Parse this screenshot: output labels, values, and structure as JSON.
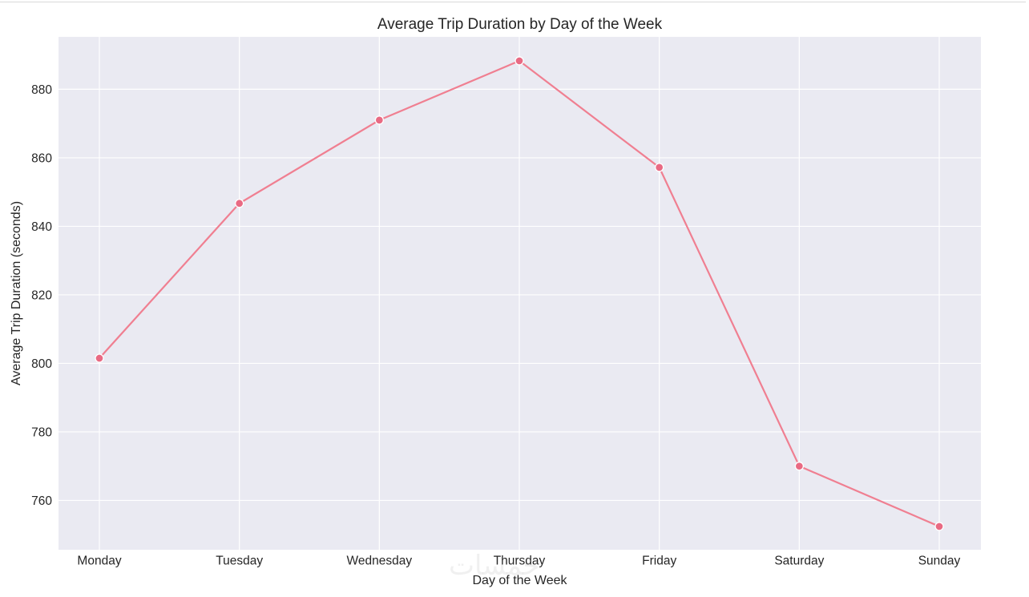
{
  "colors": {
    "plot_background": "#eaeaf2",
    "grid": "#ffffff",
    "line": "#f07f91",
    "marker": "#e96a83",
    "text": "#262626"
  },
  "chart_data": {
    "type": "line",
    "title": "Average Trip Duration by Day of the Week",
    "xlabel": "Day of the Week",
    "ylabel": "Average Trip Duration (seconds)",
    "categories": [
      "Monday",
      "Tuesday",
      "Wednesday",
      "Thursday",
      "Friday",
      "Saturday",
      "Sunday"
    ],
    "values": [
      801.5,
      846.7,
      871.0,
      888.3,
      857.2,
      770.0,
      752.4
    ],
    "yticks": [
      760,
      780,
      800,
      820,
      840,
      860,
      880
    ],
    "ylim": [
      745.6,
      895.3
    ],
    "grid": true,
    "legend": "none"
  },
  "watermark": "خمسات"
}
